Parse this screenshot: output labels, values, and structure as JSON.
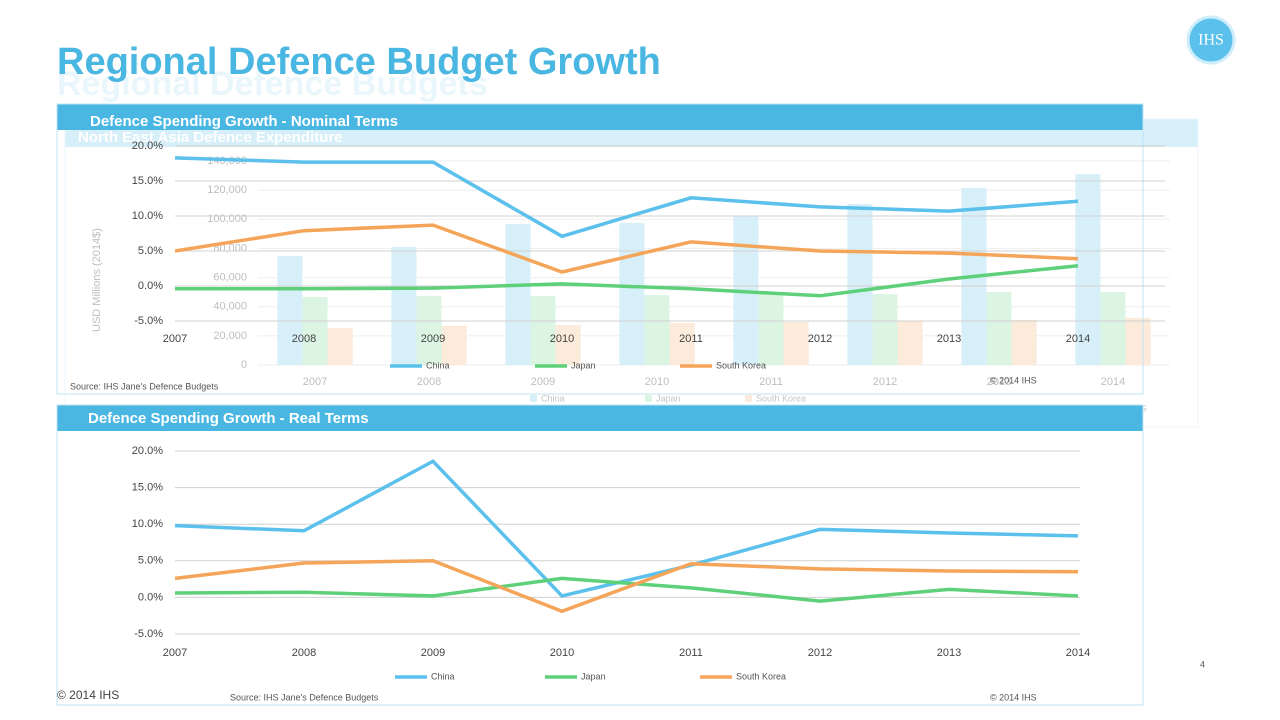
{
  "header": {
    "title": "Regional Defence Budget Growth",
    "ghost_title": "Regional Defence Budgets",
    "logo": "IHS"
  },
  "footer": {
    "copyright": "© 2014 IHS",
    "page_number": "4"
  },
  "chart_data": [
    {
      "type": "line",
      "title": "Defence Spending Growth - Nominal Terms",
      "categories": [
        "2007",
        "2008",
        "2009",
        "2010",
        "2011",
        "2012",
        "2013",
        "2014"
      ],
      "series": [
        {
          "name": "China",
          "color": "#5bc0eb",
          "values": [
            18.3,
            17.7,
            17.7,
            7.1,
            12.6,
            11.3,
            10.7,
            12.1
          ]
        },
        {
          "name": "Japan",
          "color": "#5fd07a",
          "values": [
            -0.4,
            -0.4,
            -0.3,
            0.3,
            -0.4,
            -1.4,
            1.0,
            2.9
          ]
        },
        {
          "name": "South Korea",
          "color": "#f5a55a",
          "values": [
            5.0,
            7.9,
            8.7,
            2.0,
            6.3,
            5.0,
            4.7,
            3.9
          ]
        }
      ],
      "ylim": [
        -5,
        20
      ],
      "yticks": [
        {
          "value": -5,
          "label": "-5.0%"
        },
        {
          "value": 0,
          "label": "0.0%"
        },
        {
          "value": 5,
          "label": "5.0%"
        },
        {
          "value": 10,
          "label": "10.0%"
        },
        {
          "value": 15,
          "label": "15.0%"
        },
        {
          "value": 20,
          "label": "20.0%"
        }
      ],
      "grid": true,
      "source": "Source: IHS Jane's Defence Budgets",
      "copyright": "© 2014 IHS"
    },
    {
      "type": "line",
      "title": "Defence Spending Growth  - Real Terms",
      "categories": [
        "2007",
        "2008",
        "2009",
        "2010",
        "2011",
        "2012",
        "2013",
        "2014"
      ],
      "series": [
        {
          "name": "China",
          "color": "#5bc0eb",
          "values": [
            9.8,
            9.1,
            18.6,
            0.2,
            4.4,
            9.3,
            8.8,
            8.4
          ]
        },
        {
          "name": "Japan",
          "color": "#5fd07a",
          "values": [
            0.6,
            0.7,
            0.2,
            2.6,
            1.3,
            -0.5,
            1.1,
            0.2
          ]
        },
        {
          "name": "South Korea",
          "color": "#f5a55a",
          "values": [
            2.6,
            4.7,
            5.0,
            -1.9,
            4.6,
            3.9,
            3.6,
            3.5
          ]
        }
      ],
      "ylim": [
        -5,
        20
      ],
      "yticks": [
        {
          "value": -5,
          "label": "-5.0%"
        },
        {
          "value": 0,
          "label": "0.0%"
        },
        {
          "value": 5,
          "label": "5.0%"
        },
        {
          "value": 10,
          "label": "10.0%"
        },
        {
          "value": 15,
          "label": "15.0%"
        },
        {
          "value": 20,
          "label": "20.0%"
        }
      ],
      "grid": true,
      "source": "Source: IHS Jane's Defence Budgets",
      "copyright": "© 2014 IHS"
    },
    {
      "type": "bar",
      "title": "North East Asia Defence Expenditure",
      "y_label": "USD Millions (2014$)",
      "categories": [
        "2007",
        "2008",
        "2009",
        "2010",
        "2011",
        "2012",
        "2013",
        "2014"
      ],
      "series": [
        {
          "name": "China",
          "color": "#8fd3f0",
          "values": [
            74800,
            81000,
            96800,
            97500,
            102000,
            110500,
            121500,
            131000
          ]
        },
        {
          "name": "Japan",
          "color": "#9ee3ad",
          "values": [
            46700,
            47400,
            47400,
            48000,
            49400,
            48700,
            50100,
            50100
          ]
        },
        {
          "name": "South Korea",
          "color": "#f8c596",
          "values": [
            25400,
            26800,
            27500,
            28800,
            29500,
            30200,
            30900,
            32300
          ]
        }
      ],
      "ylim": [
        0,
        140000
      ],
      "yticks": [
        0,
        {
          "value": 20000,
          "label": "20,000"
        },
        {
          "value": 40000,
          "label": "40,000"
        },
        {
          "value": 60000,
          "label": "60,000"
        },
        {
          "value": 80000,
          "label": "80,000"
        },
        {
          "value": 100000,
          "label": "100,000"
        },
        {
          "value": 120000,
          "label": "120,000"
        },
        {
          "value": 140000,
          "label": "140,000"
        }
      ],
      "grid": true,
      "copyright": "© 2014 IHS"
    }
  ]
}
